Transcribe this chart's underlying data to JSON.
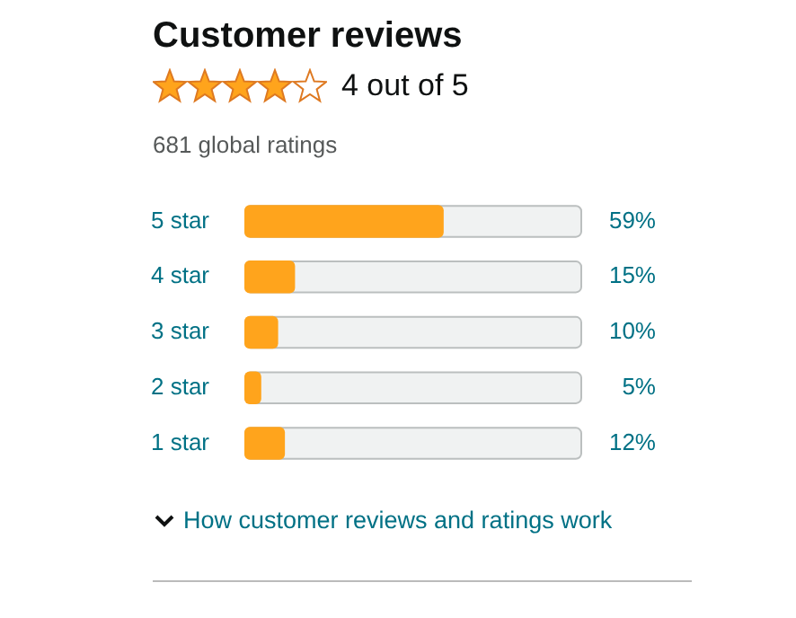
{
  "chart_data": {
    "type": "bar",
    "title": "Customer reviews",
    "subtitle": "4 out of 5",
    "annotations": [
      "681 global ratings",
      "How customer reviews and ratings work"
    ],
    "orientation": "horizontal",
    "categories": [
      "5 star",
      "4 star",
      "3 star",
      "2 star",
      "1 star"
    ],
    "values": [
      59,
      15,
      10,
      5,
      12
    ],
    "value_labels": [
      "59%",
      "15%",
      "10%",
      "5%",
      "12%"
    ],
    "color": "#ffa41c",
    "xlim": [
      0,
      100
    ],
    "tick_labels": "y",
    "legend": false
  }
}
